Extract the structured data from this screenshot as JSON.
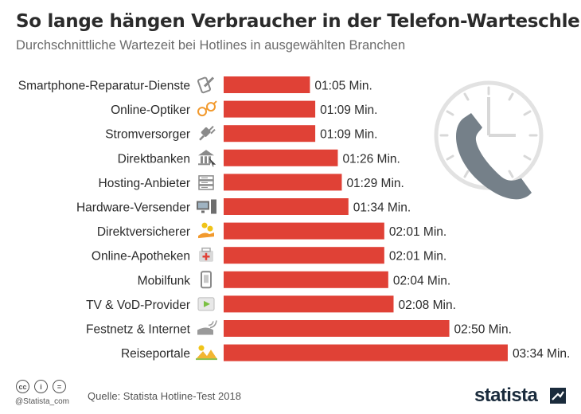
{
  "header": {
    "title": "So lange hängen Verbraucher in der Telefon-Warteschleife",
    "subtitle": "Durchschnittliche Wartezeit bei Hotlines in ausgewählten Branchen"
  },
  "footer": {
    "source": "Quelle: Statista Hotline-Test 2018",
    "handle": "@Statista_com",
    "brand": "statista",
    "license_icons": [
      "cc-icon",
      "attribution-icon",
      "no-derivatives-icon"
    ]
  },
  "colors": {
    "bar": "#e04136",
    "icon_gray": "#8a8a8a",
    "icon_orange": "#f29a2e",
    "brand": "#1a2b3c"
  },
  "chart_data": {
    "type": "bar",
    "orientation": "horizontal",
    "unit": "seconds",
    "categories": [
      "Smartphone-Reparatur-Dienste",
      "Online-Optiker",
      "Stromversorger",
      "Direktbanken",
      "Hosting-Anbieter",
      "Hardware-Versender",
      "Direktversicherer",
      "Online-Apotheken",
      "Mobilfunk",
      "TV & VoD-Provider",
      "Festnetz & Internet",
      "Reiseportale"
    ],
    "values": [
      65,
      69,
      69,
      86,
      89,
      94,
      121,
      121,
      124,
      128,
      170,
      214
    ],
    "labels": [
      "01:05 Min.",
      "01:09 Min.",
      "01:09 Min.",
      "01:26 Min.",
      "01:29 Min.",
      "01:34 Min.",
      "02:01 Min.",
      "02:01 Min.",
      "02:04 Min.",
      "02:08 Min.",
      "02:50 Min.",
      "03:34 Min."
    ],
    "icons": [
      "phone-repair-icon",
      "glasses-icon",
      "power-plug-icon",
      "bank-icon",
      "server-icon",
      "computer-icon",
      "insurance-hand-icon",
      "medicine-box-icon",
      "smartphone-icon",
      "video-player-icon",
      "landline-phone-icon",
      "landscape-icon"
    ],
    "decoration_icon": "clock-phone-icon",
    "grid": false,
    "legend": "none"
  }
}
